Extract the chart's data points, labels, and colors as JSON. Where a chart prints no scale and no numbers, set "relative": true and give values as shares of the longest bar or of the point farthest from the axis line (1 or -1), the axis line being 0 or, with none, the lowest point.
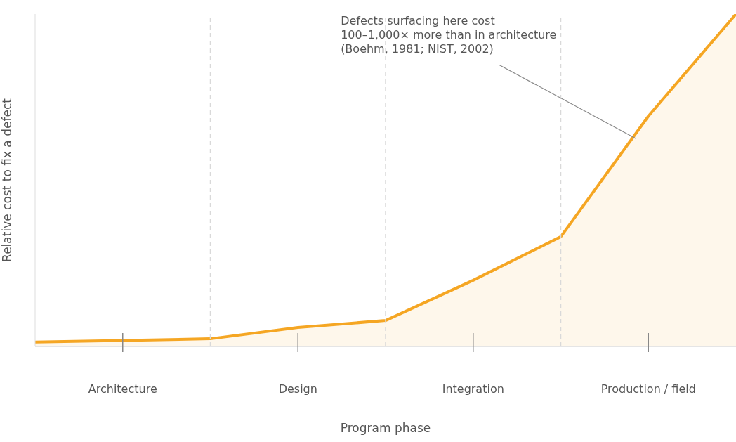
{
  "chart_data": {
    "type": "area",
    "relative": true,
    "xlabel": "Program phase",
    "ylabel": "Relative cost to fix a defect",
    "categories": [
      null,
      "Architecture",
      null,
      "Design",
      null,
      "Integration",
      null,
      "Production / field",
      null
    ],
    "series": [
      {
        "color": "#f5a623",
        "values": [
          0.013,
          0.018,
          0.023,
          0.057,
          0.078,
          0.199,
          0.33,
          0.693,
          1
        ]
      }
    ],
    "grid": "x",
    "annotations": [
      "Defects surfacing here cost\n100–1,000× more than in architecture\n(Boehm, 1981; NIST, 2002)"
    ]
  }
}
